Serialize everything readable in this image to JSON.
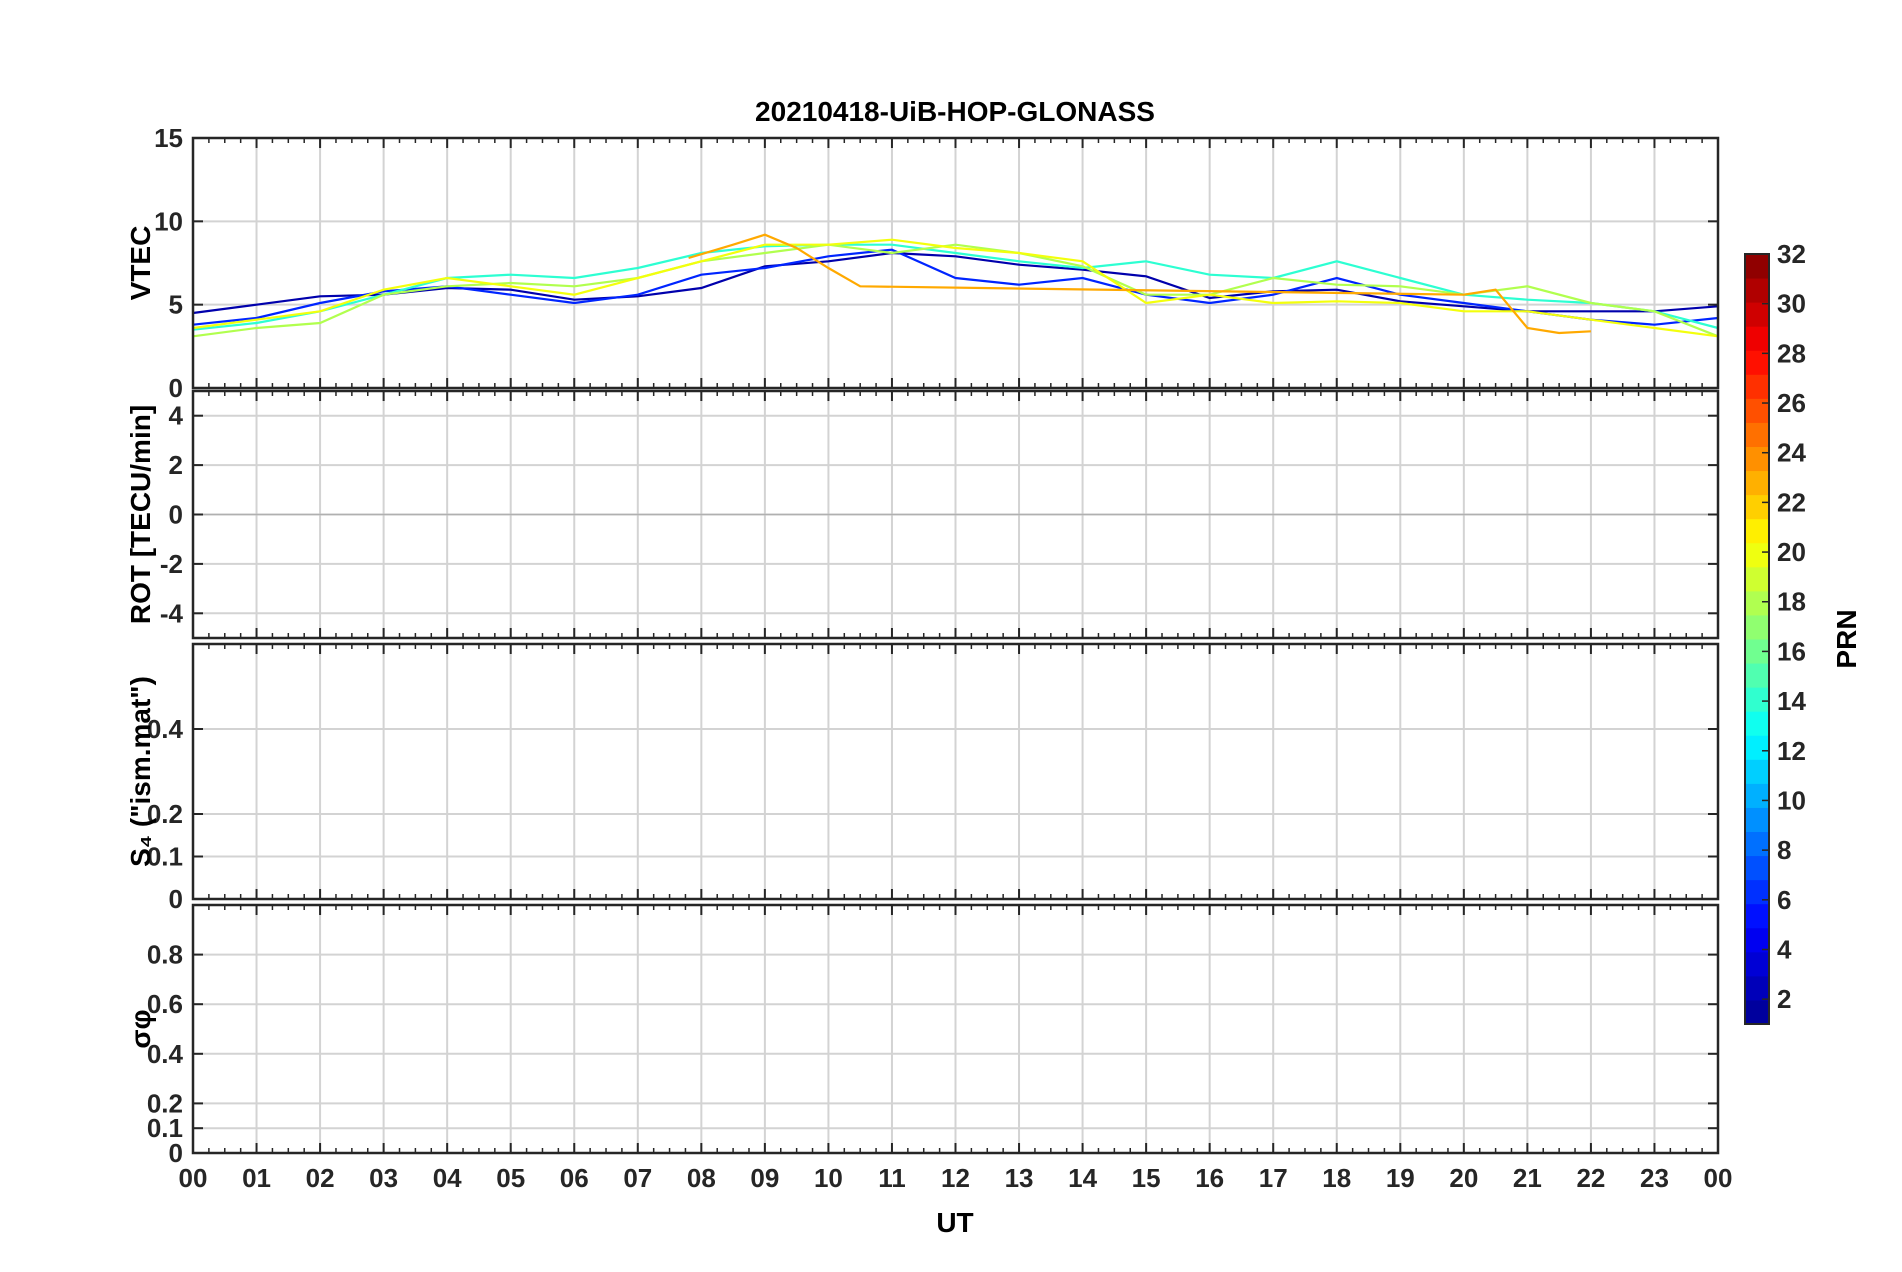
{
  "chart_data": {
    "type": "line",
    "title": "20210418-UiB-HOP-GLONASS",
    "xlabel": "UT",
    "x_ticks": [
      "00",
      "01",
      "02",
      "03",
      "04",
      "05",
      "06",
      "07",
      "08",
      "09",
      "10",
      "11",
      "12",
      "13",
      "14",
      "15",
      "16",
      "17",
      "18",
      "19",
      "20",
      "21",
      "22",
      "23",
      "00"
    ],
    "xlim": [
      0,
      24
    ],
    "grid": true,
    "colorbar": {
      "label": "PRN",
      "colormap": "jet",
      "range": [
        1,
        32
      ],
      "ticks": [
        "2",
        "4",
        "6",
        "8",
        "10",
        "12",
        "14",
        "16",
        "18",
        "20",
        "22",
        "24",
        "26",
        "28",
        "30",
        "32"
      ],
      "colors": [
        "#00008f",
        "#0000ff",
        "#0080ff",
        "#00ffff",
        "#80ff80",
        "#ffff00",
        "#ff8000",
        "#ff0000",
        "#800000"
      ]
    },
    "panels": [
      {
        "ylabel": "VTEC",
        "ylim": [
          0,
          15
        ],
        "y_ticks": [
          "0",
          "5",
          "10",
          "15"
        ],
        "series": [
          {
            "prn": 2,
            "x": [
              0,
              1,
              2,
              3,
              4,
              5,
              6,
              7,
              8,
              9,
              10,
              11,
              12,
              13,
              14,
              15,
              16,
              17,
              18,
              19,
              20,
              21,
              22,
              23,
              24
            ],
            "y": [
              4.5,
              5,
              5.5,
              5.6,
              6,
              5.9,
              5.3,
              5.5,
              6,
              7.3,
              7.6,
              8.1,
              7.9,
              7.4,
              7.1,
              6.7,
              5.4,
              5.8,
              5.9,
              5.2,
              4.9,
              4.6,
              4.6,
              4.6,
              4.9
            ]
          },
          {
            "prn": 6,
            "x": [
              0,
              1,
              2,
              3,
              4,
              5,
              6,
              7,
              8,
              9,
              10,
              11,
              12,
              13,
              14,
              15,
              16,
              17,
              18,
              19,
              20,
              21,
              22,
              23,
              24
            ],
            "y": [
              3.8,
              4.2,
              5.1,
              5.8,
              6.1,
              5.6,
              5.1,
              5.6,
              6.8,
              7.2,
              7.9,
              8.3,
              6.6,
              6.2,
              6.6,
              5.6,
              5.1,
              5.6,
              6.6,
              5.6,
              5.1,
              4.6,
              4.1,
              3.8,
              4.2
            ]
          },
          {
            "prn": 14,
            "x": [
              0,
              1,
              2,
              3,
              4,
              5,
              6,
              7,
              8,
              9,
              10,
              11,
              12,
              13,
              14,
              15,
              16,
              17,
              18,
              19,
              20,
              21,
              22,
              23,
              24
            ],
            "y": [
              3.5,
              3.9,
              4.6,
              5.6,
              6.6,
              6.8,
              6.6,
              7.2,
              8.1,
              8.5,
              8.6,
              8.6,
              8.1,
              7.6,
              7.2,
              7.6,
              6.8,
              6.6,
              7.6,
              6.6,
              5.6,
              5.3,
              5.1,
              4.6,
              3.6
            ]
          },
          {
            "prn": 18,
            "x": [
              0,
              1,
              2,
              3,
              4,
              5,
              6,
              7,
              8,
              9,
              10,
              11,
              12,
              13,
              14,
              15,
              16,
              17,
              18,
              19,
              20,
              21,
              22,
              23,
              24
            ],
            "y": [
              3.1,
              3.6,
              3.9,
              5.6,
              6.1,
              6.3,
              6.1,
              6.6,
              7.6,
              8.1,
              8.6,
              8.1,
              8.6,
              8.1,
              7.3,
              5.6,
              5.6,
              6.6,
              6.2,
              6.1,
              5.6,
              6.1,
              5.1,
              4.6,
              3.1
            ]
          },
          {
            "prn": 20,
            "x": [
              0,
              1,
              2,
              3,
              4,
              5,
              6,
              7,
              8,
              9,
              10,
              11,
              12,
              13,
              14,
              15,
              16,
              17,
              18,
              19,
              20,
              21,
              22,
              23,
              24
            ],
            "y": [
              3.6,
              4.1,
              4.6,
              5.9,
              6.6,
              6.1,
              5.6,
              6.6,
              7.6,
              8.6,
              8.6,
              8.9,
              8.4,
              8.1,
              7.6,
              5.1,
              5.6,
              5.1,
              5.2,
              5.1,
              4.6,
              4.6,
              4.1,
              3.6,
              3.1
            ]
          },
          {
            "prn": 23,
            "x": [
              7.8,
              8.5,
              9,
              9.5,
              10,
              10.5,
              20,
              20.5,
              21,
              21.5,
              22
            ],
            "y": [
              7.8,
              8.6,
              9.2,
              8.4,
              7.2,
              6.1,
              5.6,
              5.9,
              3.6,
              3.3,
              3.4
            ]
          }
        ]
      },
      {
        "ylabel": "ROT [TECU/min]",
        "ylim": [
          -5,
          5
        ],
        "y_ticks": [
          "-4",
          "-2",
          "0",
          "2",
          "4"
        ]
      },
      {
        "ylabel": "S₄ (\"ism.mat\")",
        "ylim": [
          0,
          0.6
        ],
        "y_ticks": [
          "0",
          "0.1",
          "0.2",
          "0.4"
        ]
      },
      {
        "ylabel": "σφ",
        "ylim": [
          0,
          1
        ],
        "y_ticks": [
          "0",
          "0.1",
          "0.2",
          "0.4",
          "0.6",
          "0.8"
        ]
      }
    ]
  }
}
